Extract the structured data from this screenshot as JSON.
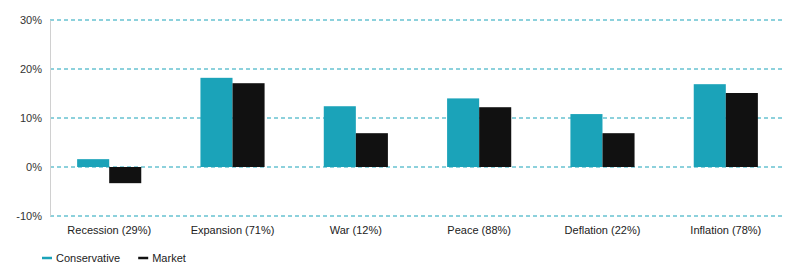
{
  "chart_data": {
    "type": "bar",
    "categories": [
      "Recession (29%)",
      "Expansion (71%)",
      "War (12%)",
      "Peace (88%)",
      "Deflation (22%)",
      "Inflation (78%)"
    ],
    "series": [
      {
        "name": "Conservative",
        "color": "#1ba3b9",
        "values": [
          1.6,
          18.2,
          12.4,
          14.0,
          10.8,
          16.9
        ]
      },
      {
        "name": "Market",
        "color": "#111111",
        "values": [
          -3.3,
          17.1,
          6.9,
          12.2,
          6.9,
          15.1
        ]
      }
    ],
    "ylim": [
      -10,
      30
    ],
    "yticks": [
      {
        "value": -10,
        "label": "-10%"
      },
      {
        "value": 0,
        "label": "0%"
      },
      {
        "value": 10,
        "label": "10%"
      },
      {
        "value": 20,
        "label": "20%"
      },
      {
        "value": 30,
        "label": "30%"
      }
    ],
    "grid": true,
    "legend": "bottom-left"
  }
}
